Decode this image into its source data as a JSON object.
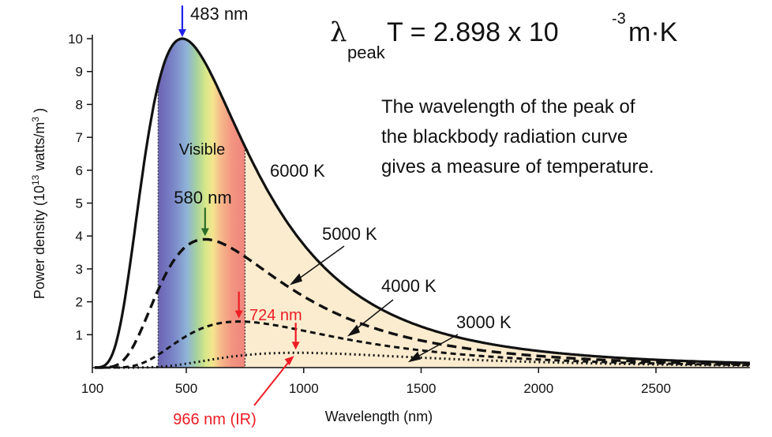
{
  "chart_data": {
    "type": "line",
    "title": "",
    "xlabel": "Wavelength (nm)",
    "ylabel": "Power density (10",
    "ylabel_exp": "13",
    "ylabel_unit": " watts/m",
    "ylabel_unit_exp": "3",
    "ylabel_close": " )",
    "xlim": [
      100,
      2900
    ],
    "ylim": [
      0,
      10
    ],
    "x_ticks": [
      "100",
      "500",
      "1000",
      "1500",
      "2000",
      "2500"
    ],
    "y_ticks": [
      "1",
      "2",
      "3",
      "4",
      "5",
      "6",
      "7",
      "8",
      "9",
      "10"
    ],
    "visible_band": {
      "label": "Visible",
      "from": 380,
      "to": 750
    },
    "series": [
      {
        "name": "6000 K",
        "temperature": 6000,
        "peak_wavelength": 483,
        "peak_value": 10.0,
        "style": "solid"
      },
      {
        "name": "5000 K",
        "temperature": 5000,
        "peak_wavelength": 580,
        "peak_value": 3.9,
        "style": "dashed"
      },
      {
        "name": "4000 K",
        "temperature": 4000,
        "peak_wavelength": 724,
        "peak_value": 1.4,
        "style": "dashed"
      },
      {
        "name": "3000 K",
        "temperature": 3000,
        "peak_wavelength": 966,
        "peak_value": 0.45,
        "style": "dotted"
      }
    ],
    "annotations": {
      "peak_6000": "483 nm",
      "peak_5000": "580 nm",
      "peak_4000": "724 nm",
      "peak_3000": "966 nm (IR)"
    },
    "formula": {
      "lambda": "λ",
      "sub": "peak",
      "main": "T = 2.898  x 10",
      "exp": "-3",
      "unit": " m·K"
    },
    "note_lines": [
      "The wavelength of the peak of",
      "the blackbody radiation curve",
      "gives a measure of temperature."
    ],
    "colors": {
      "curve": "#111111",
      "peak_6000_arrow": "#2222ee",
      "peak_5000_arrow": "#2a6b2a",
      "peak_red": "#ee1c24",
      "ir_fill": "#fbeccf"
    }
  }
}
